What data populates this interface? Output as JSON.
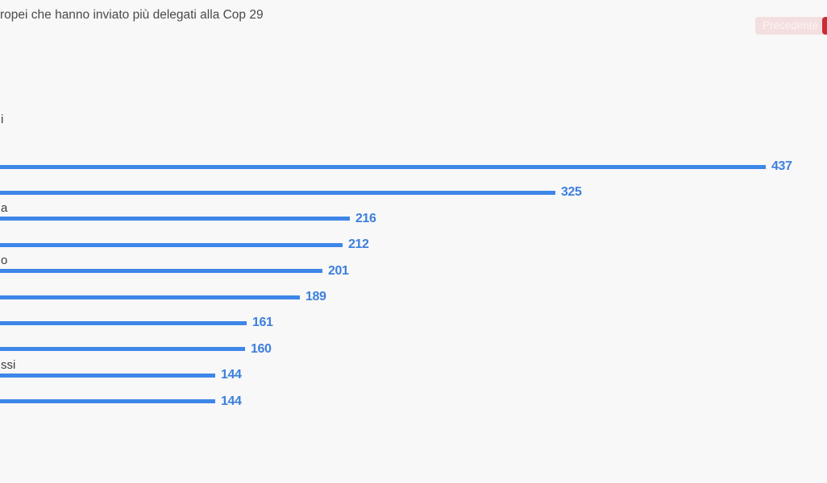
{
  "header": {
    "title_fragment": "ropei che hanno inviato più delegati alla Cop 29",
    "subtitle_fragment": "i"
  },
  "nav": {
    "previous_label": "Precedente"
  },
  "colors": {
    "background": "#f8f8f8",
    "text_dark": "#4a4a4a",
    "bar_blue": "#3e86e8",
    "value_blue": "#3d7fdd",
    "button_pink_bg": "#f3dfdf",
    "button_pink_text": "#fdf3f3",
    "button_red": "#c92d35"
  },
  "chart_data": {
    "type": "bar",
    "orientation": "horizontal",
    "title": "ropei che hanno inviato più delegati alla Cop 29",
    "categories": [
      "",
      "",
      "a",
      "",
      "o",
      "",
      "",
      "",
      "ssi",
      ""
    ],
    "values": [
      437,
      325,
      216,
      212,
      201,
      189,
      161,
      160,
      144,
      144
    ],
    "value_labels": [
      "437",
      "325",
      "216",
      "212",
      "201",
      "189",
      "161",
      "160",
      "144",
      "144"
    ],
    "xlabel": "",
    "ylabel": "",
    "grid": false,
    "legend": false,
    "value_labels_position": "end-of-bar",
    "note": "left edge of chart and category labels cut off at viewport edge"
  }
}
